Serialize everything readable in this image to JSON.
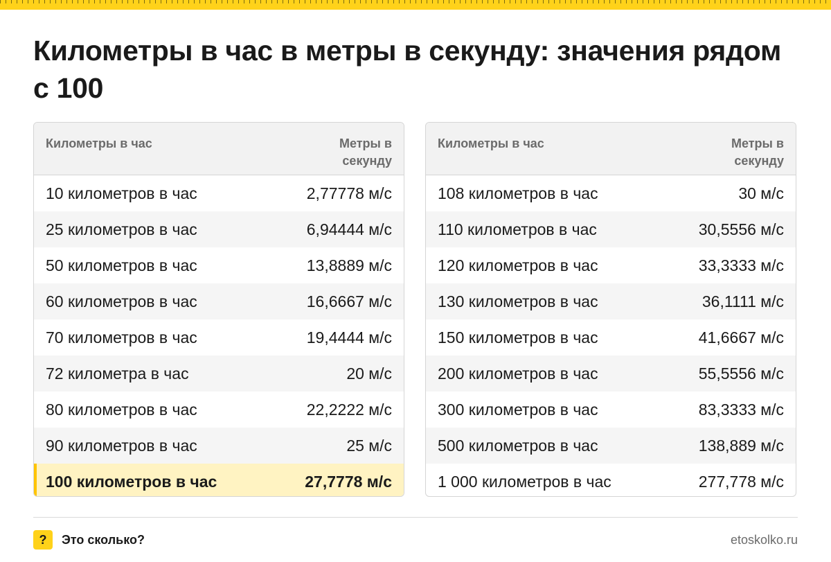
{
  "title": "Километры в час в метры в секунду: значения рядом с 100",
  "colors": {
    "accent": "#ffd21a",
    "highlight_row": "#fff3c2",
    "highlight_bar": "#ffc400"
  },
  "table_left": {
    "header": {
      "col1": "Километры в час",
      "col2": "Метры в секунду"
    },
    "rows": [
      {
        "kmh": "10 километров в час",
        "ms": "2,77778 м/с"
      },
      {
        "kmh": "25 километров в час",
        "ms": "6,94444 м/с"
      },
      {
        "kmh": "50 километров в час",
        "ms": "13,8889 м/с"
      },
      {
        "kmh": "60 километров в час",
        "ms": "16,6667 м/с"
      },
      {
        "kmh": "70 километров в час",
        "ms": "19,4444 м/с"
      },
      {
        "kmh": "72 километра в час",
        "ms": "20 м/с"
      },
      {
        "kmh": "80 километров в час",
        "ms": "22,2222 м/с"
      },
      {
        "kmh": "90 километров в час",
        "ms": "25 м/с"
      },
      {
        "kmh": "100 километров в час",
        "ms": "27,7778 м/с"
      }
    ]
  },
  "table_right": {
    "header": {
      "col1": "Километры в час",
      "col2": "Метры в секунду"
    },
    "rows": [
      {
        "kmh": "108 километров в час",
        "ms": "30 м/с"
      },
      {
        "kmh": "110 километров в час",
        "ms": "30,5556 м/с"
      },
      {
        "kmh": "120 километров в час",
        "ms": "33,3333 м/с"
      },
      {
        "kmh": "130 километров в час",
        "ms": "36,1111 м/с"
      },
      {
        "kmh": "150 километров в час",
        "ms": "41,6667 м/с"
      },
      {
        "kmh": "200 километров в час",
        "ms": "55,5556 м/с"
      },
      {
        "kmh": "300 километров в час",
        "ms": "83,3333 м/с"
      },
      {
        "kmh": "500 километров в час",
        "ms": "138,889 м/с"
      },
      {
        "kmh": "1 000 километров в час",
        "ms": "277,778 м/с"
      }
    ]
  },
  "footer": {
    "icon": "question-icon",
    "icon_char": "?",
    "brand": "Это сколько?",
    "site": "etoskolko.ru"
  }
}
